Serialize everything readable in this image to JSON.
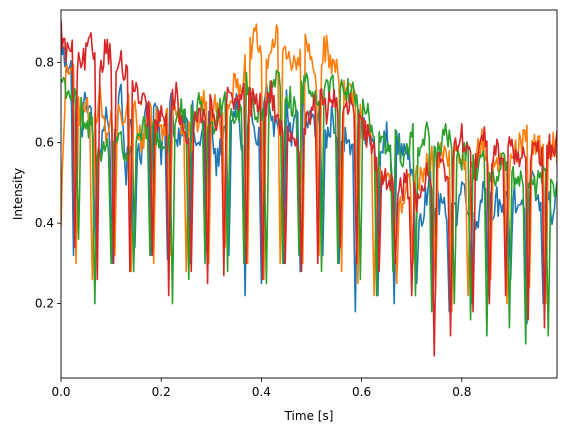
{
  "chart_data": {
    "type": "line",
    "title": "",
    "xlabel": "Time [s]",
    "ylabel": "Intensity",
    "xlim": [
      0,
      0.99
    ],
    "ylim": [
      0.015,
      0.93
    ],
    "grid": false,
    "x_ticks": [
      0.0,
      0.2,
      0.4,
      0.6,
      0.8
    ],
    "x_tick_labels": [
      "0.0",
      "0.2",
      "0.4",
      "0.6",
      "0.8"
    ],
    "y_ticks": [
      0.2,
      0.4,
      0.6,
      0.8
    ],
    "y_tick_labels": [
      "0.2",
      "0.4",
      "0.6",
      "0.8"
    ],
    "x_start": 0.0,
    "x_step": 0.01,
    "series": [
      {
        "color": "#1f77b4",
        "values": [
          0.86,
          0.78,
          0.82,
          0.74,
          0.62,
          0.72,
          0.66,
          0.54,
          0.6,
          0.68,
          0.58,
          0.64,
          0.72,
          0.52,
          0.66,
          0.6,
          0.58,
          0.68,
          0.64,
          0.72,
          0.56,
          0.66,
          0.7,
          0.6,
          0.64,
          0.68,
          0.7,
          0.58,
          0.62,
          0.66,
          0.64,
          0.54,
          0.6,
          0.66,
          0.62,
          0.7,
          0.6,
          0.64,
          0.68,
          0.58,
          0.66,
          0.72,
          0.62,
          0.68,
          0.64,
          0.7,
          0.6,
          0.66,
          0.72,
          0.64,
          0.68,
          0.62,
          0.7,
          0.6,
          0.66,
          0.64,
          0.58,
          0.62,
          0.6,
          0.66,
          0.64,
          0.62,
          0.6,
          0.56,
          0.58,
          0.62,
          0.54,
          0.6,
          0.58,
          0.6,
          0.5,
          0.46,
          0.42,
          0.48,
          0.5,
          0.44,
          0.46,
          0.4,
          0.48,
          0.42,
          0.5,
          0.46,
          0.44,
          0.4,
          0.48,
          0.5,
          0.44,
          0.46,
          0.4,
          0.48,
          0.5,
          0.44,
          0.46,
          0.42,
          0.5,
          0.46,
          0.44,
          0.48,
          0.42,
          0.5
        ],
        "dips": [
          0.32,
          0.33,
          0.3,
          0.34,
          0.32,
          0.31,
          0.3,
          0.33,
          0.32,
          0.22,
          0.25,
          0.3,
          0.28,
          0.32,
          0.3,
          0.18,
          0.22,
          0.2,
          0.25,
          0.24,
          0.18,
          0.2,
          0.22,
          0.26,
          0.15,
          0.2
        ]
      },
      {
        "color": "#ff7f0e",
        "values": [
          0.42,
          0.76,
          0.8,
          0.72,
          0.66,
          0.7,
          0.62,
          0.68,
          0.72,
          0.6,
          0.66,
          0.7,
          0.64,
          0.68,
          0.72,
          0.66,
          0.6,
          0.64,
          0.7,
          0.68,
          0.62,
          0.66,
          0.72,
          0.7,
          0.64,
          0.68,
          0.6,
          0.64,
          0.68,
          0.72,
          0.66,
          0.7,
          0.64,
          0.68,
          0.72,
          0.76,
          0.74,
          0.8,
          0.84,
          0.86,
          0.82,
          0.8,
          0.84,
          0.86,
          0.82,
          0.84,
          0.8,
          0.78,
          0.82,
          0.84,
          0.8,
          0.76,
          0.82,
          0.84,
          0.78,
          0.8,
          0.76,
          0.72,
          0.74,
          0.68,
          0.66,
          0.62,
          0.6,
          0.56,
          0.52,
          0.5,
          0.48,
          0.44,
          0.46,
          0.5,
          0.48,
          0.52,
          0.5,
          0.54,
          0.56,
          0.52,
          0.58,
          0.56,
          0.6,
          0.58,
          0.56,
          0.54,
          0.56,
          0.58,
          0.6,
          0.56,
          0.58,
          0.54,
          0.56,
          0.52,
          0.56,
          0.58,
          0.6,
          0.62,
          0.58,
          0.6,
          0.58,
          0.56,
          0.6,
          0.58
        ],
        "dips": [
          0.3,
          0.26,
          0.32,
          0.28,
          0.3,
          0.32,
          0.28,
          0.3,
          0.34,
          0.3,
          0.26,
          0.3,
          0.3,
          0.32,
          0.28,
          0.25,
          0.22,
          0.25,
          0.3,
          0.22,
          0.18,
          0.22,
          0.26,
          0.2,
          0.24,
          0.2
        ]
      },
      {
        "color": "#2ca02c",
        "values": [
          0.76,
          0.74,
          0.72,
          0.7,
          0.68,
          0.62,
          0.66,
          0.6,
          0.56,
          0.6,
          0.58,
          0.62,
          0.6,
          0.56,
          0.6,
          0.58,
          0.62,
          0.64,
          0.66,
          0.62,
          0.6,
          0.58,
          0.64,
          0.66,
          0.68,
          0.64,
          0.66,
          0.68,
          0.7,
          0.66,
          0.62,
          0.68,
          0.7,
          0.72,
          0.68,
          0.66,
          0.7,
          0.74,
          0.72,
          0.68,
          0.66,
          0.7,
          0.74,
          0.76,
          0.72,
          0.74,
          0.7,
          0.68,
          0.72,
          0.76,
          0.74,
          0.7,
          0.72,
          0.76,
          0.74,
          0.72,
          0.76,
          0.72,
          0.74,
          0.7,
          0.7,
          0.68,
          0.62,
          0.64,
          0.6,
          0.58,
          0.62,
          0.6,
          0.56,
          0.58,
          0.62,
          0.6,
          0.58,
          0.62,
          0.58,
          0.56,
          0.6,
          0.62,
          0.58,
          0.54,
          0.56,
          0.6,
          0.56,
          0.52,
          0.54,
          0.58,
          0.52,
          0.5,
          0.54,
          0.56,
          0.52,
          0.48,
          0.5,
          0.52,
          0.48,
          0.5,
          0.52,
          0.5,
          0.48,
          0.5
        ],
        "dips": [
          0.36,
          0.2,
          0.3,
          0.28,
          0.32,
          0.2,
          0.26,
          0.3,
          0.28,
          0.3,
          0.25,
          0.3,
          0.32,
          0.28,
          0.3,
          0.26,
          0.22,
          0.28,
          0.22,
          0.18,
          0.2,
          0.16,
          0.12,
          0.14,
          0.1,
          0.12
        ]
      },
      {
        "color": "#d62728",
        "values": [
          0.88,
          0.82,
          0.84,
          0.8,
          0.78,
          0.82,
          0.84,
          0.82,
          0.8,
          0.84,
          0.82,
          0.78,
          0.8,
          0.76,
          0.74,
          0.72,
          0.7,
          0.68,
          0.66,
          0.64,
          0.66,
          0.68,
          0.7,
          0.72,
          0.66,
          0.62,
          0.64,
          0.66,
          0.68,
          0.7,
          0.68,
          0.66,
          0.7,
          0.72,
          0.7,
          0.68,
          0.72,
          0.74,
          0.7,
          0.72,
          0.68,
          0.7,
          0.72,
          0.66,
          0.64,
          0.62,
          0.6,
          0.58,
          0.62,
          0.66,
          0.68,
          0.72,
          0.7,
          0.68,
          0.72,
          0.7,
          0.66,
          0.68,
          0.7,
          0.66,
          0.64,
          0.62,
          0.58,
          0.56,
          0.54,
          0.5,
          0.52,
          0.5,
          0.48,
          0.5,
          0.48,
          0.46,
          0.5,
          0.52,
          0.5,
          0.54,
          0.56,
          0.52,
          0.54,
          0.6,
          0.62,
          0.58,
          0.54,
          0.56,
          0.6,
          0.62,
          0.58,
          0.6,
          0.56,
          0.58,
          0.6,
          0.56,
          0.58,
          0.54,
          0.56,
          0.58,
          0.56,
          0.6,
          0.58,
          0.6
        ],
        "dips": [
          0.34,
          0.26,
          0.3,
          0.28,
          0.32,
          0.22,
          0.28,
          0.25,
          0.27,
          0.3,
          0.26,
          0.3,
          0.28,
          0.3,
          0.34,
          0.3,
          0.28,
          0.3,
          0.22,
          0.07,
          0.12,
          0.18,
          0.2,
          0.22,
          0.16,
          0.14
        ]
      }
    ]
  }
}
